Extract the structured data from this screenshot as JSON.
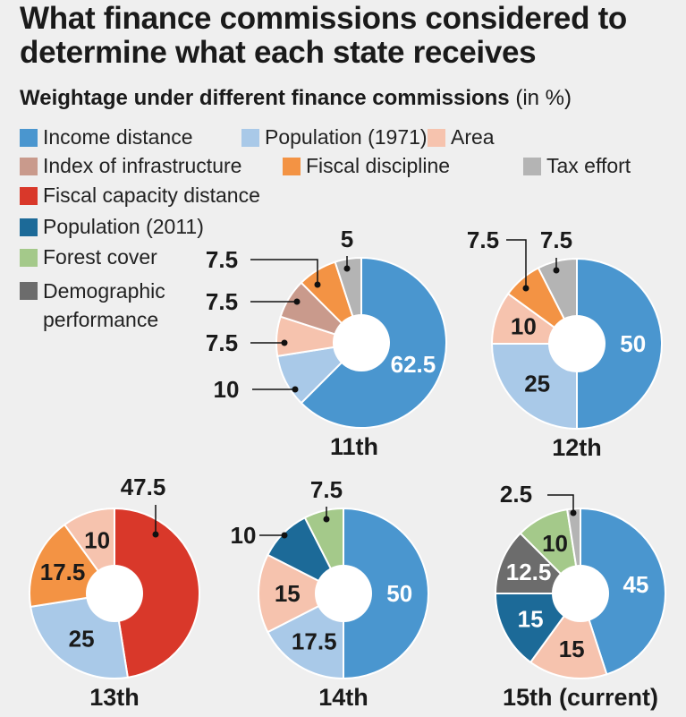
{
  "chart_data": {
    "type": "pie",
    "title": "What finance commissions considered to determine what each state receives",
    "subtitle": "Weightage under different finance commissions",
    "unit": "(in %)",
    "legend": [
      {
        "name": "Income distance",
        "color": "#4a96cf"
      },
      {
        "name": "Population (1971)",
        "color": "#a9c9e8"
      },
      {
        "name": "Area",
        "color": "#f6c3ae"
      },
      {
        "name": "Index of infrastructure",
        "color": "#c99a8c"
      },
      {
        "name": "Fiscal discipline",
        "color": "#f39344"
      },
      {
        "name": "Tax effort",
        "color": "#b4b4b4"
      },
      {
        "name": "Fiscal capacity distance",
        "color": "#d9382a"
      },
      {
        "name": "Population (2011)",
        "color": "#1c6a98"
      },
      {
        "name": "Forest cover",
        "color": "#a4c98a"
      },
      {
        "name": "Demographic performance",
        "color": "#6c6c6c"
      }
    ],
    "charts": [
      {
        "name": "11th",
        "slices": [
          {
            "category": "Income distance",
            "value": 62.5
          },
          {
            "category": "Population (1971)",
            "value": 10
          },
          {
            "category": "Area",
            "value": 7.5
          },
          {
            "category": "Index of infrastructure",
            "value": 7.5
          },
          {
            "category": "Fiscal discipline",
            "value": 7.5
          },
          {
            "category": "Tax effort",
            "value": 5
          }
        ]
      },
      {
        "name": "12th",
        "slices": [
          {
            "category": "Income distance",
            "value": 50
          },
          {
            "category": "Population (1971)",
            "value": 25
          },
          {
            "category": "Area",
            "value": 10
          },
          {
            "category": "Fiscal discipline",
            "value": 7.5
          },
          {
            "category": "Tax effort",
            "value": 7.5
          }
        ]
      },
      {
        "name": "13th",
        "slices": [
          {
            "category": "Fiscal capacity distance",
            "value": 47.5
          },
          {
            "category": "Population (1971)",
            "value": 25
          },
          {
            "category": "Fiscal discipline",
            "value": 17.5
          },
          {
            "category": "Area",
            "value": 10
          }
        ]
      },
      {
        "name": "14th",
        "slices": [
          {
            "category": "Income distance",
            "value": 50
          },
          {
            "category": "Population (1971)",
            "value": 17.5
          },
          {
            "category": "Area",
            "value": 15
          },
          {
            "category": "Population (2011)",
            "value": 10
          },
          {
            "category": "Forest cover",
            "value": 7.5
          }
        ]
      },
      {
        "name": "15th (current)",
        "slices": [
          {
            "category": "Income distance",
            "value": 45
          },
          {
            "category": "Area",
            "value": 15
          },
          {
            "category": "Population (2011)",
            "value": 15
          },
          {
            "category": "Demographic performance",
            "value": 12.5
          },
          {
            "category": "Forest cover",
            "value": 10
          },
          {
            "category": "Tax effort",
            "value": 2.5
          }
        ]
      }
    ]
  }
}
